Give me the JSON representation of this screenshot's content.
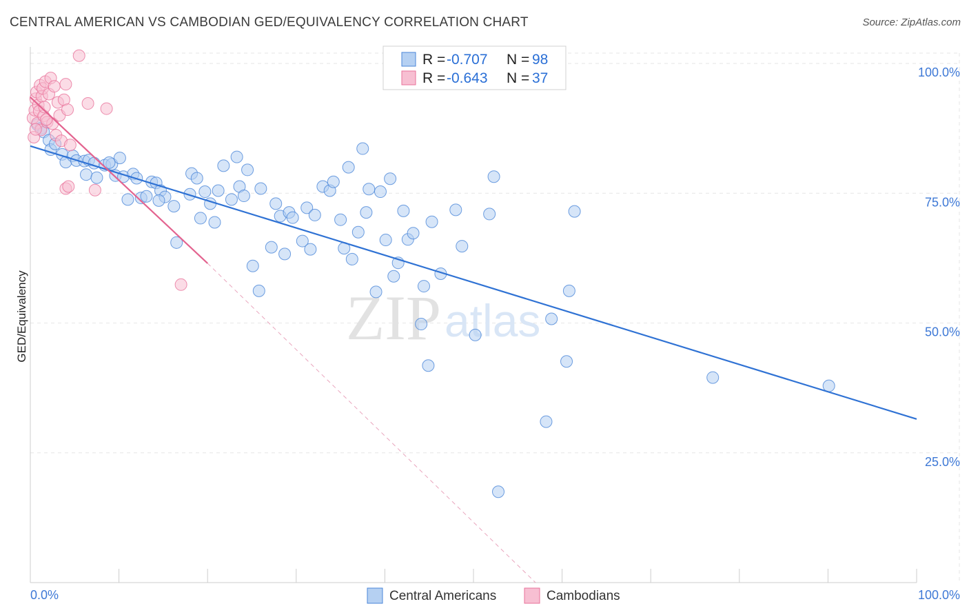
{
  "chart_data": {
    "type": "scatter",
    "title": "CENTRAL AMERICAN VS CAMBODIAN GED/EQUIVALENCY CORRELATION CHART",
    "source": "Source: ZipAtlas.com",
    "xlabel": "",
    "ylabel": "GED/Equivalency",
    "xlim": [
      0,
      100
    ],
    "ylim": [
      0,
      102
    ],
    "x_tick_labels": [
      "0.0%",
      "100.0%"
    ],
    "y_ticks": [
      25,
      50,
      75,
      100
    ],
    "y_tick_labels": [
      "25.0%",
      "50.0%",
      "75.0%",
      "100.0%"
    ],
    "grid": true,
    "legend_position": "top-center",
    "watermark": "ZIPatlas",
    "colors": {
      "central_americans": "#4a86d8",
      "central_americans_fill": "#b5d0f2",
      "central_americans_line": "#2f72d4",
      "cambodians": "#e9729a",
      "cambodians_fill": "#f7bfd2",
      "cambodians_line": "#e3638f"
    },
    "stats": [
      {
        "r_label": "R = ",
        "r_value": "-0.707",
        "n_label": "N = ",
        "n_value": "98"
      },
      {
        "r_label": "R = ",
        "r_value": "-0.643",
        "n_label": "N = ",
        "n_value": "37"
      }
    ],
    "series": [
      {
        "name": "Central Americans",
        "trend": {
          "x": [
            0,
            100
          ],
          "y": [
            84.1,
            31.5
          ]
        },
        "points": [
          [
            0.8,
            88.2
          ],
          [
            1.2,
            87.5
          ],
          [
            1.5,
            86.8
          ],
          [
            2.1,
            85.2
          ],
          [
            2.3,
            83.4
          ],
          [
            2.8,
            84.5
          ],
          [
            3.6,
            82.5
          ],
          [
            4.0,
            81.0
          ],
          [
            4.8,
            82.2
          ],
          [
            5.2,
            81.3
          ],
          [
            6.1,
            81.2
          ],
          [
            6.3,
            78.6
          ],
          [
            6.6,
            81.4
          ],
          [
            7.2,
            80.8
          ],
          [
            7.5,
            78.0
          ],
          [
            8.4,
            80.4
          ],
          [
            9.2,
            80.6
          ],
          [
            8.9,
            80.9
          ],
          [
            10.1,
            81.8
          ],
          [
            9.6,
            78.4
          ],
          [
            10.5,
            78.2
          ],
          [
            11.0,
            73.8
          ],
          [
            11.6,
            78.7
          ],
          [
            12.0,
            77.9
          ],
          [
            12.5,
            74.1
          ],
          [
            13.1,
            74.4
          ],
          [
            13.7,
            77.2
          ],
          [
            14.2,
            77.0
          ],
          [
            14.7,
            75.5
          ],
          [
            15.2,
            74.3
          ],
          [
            14.5,
            73.6
          ],
          [
            16.2,
            72.5
          ],
          [
            16.5,
            65.5
          ],
          [
            18.0,
            74.8
          ],
          [
            18.2,
            78.8
          ],
          [
            18.8,
            77.9
          ],
          [
            19.2,
            70.2
          ],
          [
            19.7,
            75.3
          ],
          [
            20.3,
            73.0
          ],
          [
            20.8,
            69.4
          ],
          [
            21.2,
            75.5
          ],
          [
            21.8,
            80.3
          ],
          [
            22.7,
            73.8
          ],
          [
            23.3,
            82.0
          ],
          [
            23.6,
            76.3
          ],
          [
            24.1,
            74.5
          ],
          [
            24.5,
            79.5
          ],
          [
            25.1,
            61.0
          ],
          [
            25.8,
            56.2
          ],
          [
            26.0,
            75.9
          ],
          [
            27.2,
            64.6
          ],
          [
            27.7,
            73.0
          ],
          [
            28.2,
            70.6
          ],
          [
            28.7,
            63.3
          ],
          [
            29.2,
            71.3
          ],
          [
            29.6,
            70.3
          ],
          [
            30.7,
            65.8
          ],
          [
            31.2,
            72.2
          ],
          [
            31.6,
            64.2
          ],
          [
            32.1,
            70.8
          ],
          [
            33.0,
            76.3
          ],
          [
            33.8,
            75.5
          ],
          [
            34.2,
            77.2
          ],
          [
            35.0,
            69.9
          ],
          [
            35.4,
            64.4
          ],
          [
            35.9,
            80.0
          ],
          [
            36.3,
            62.3
          ],
          [
            37.0,
            67.5
          ],
          [
            37.5,
            83.6
          ],
          [
            37.9,
            71.3
          ],
          [
            38.2,
            75.8
          ],
          [
            39.0,
            56.0
          ],
          [
            39.5,
            75.3
          ],
          [
            40.1,
            66.0
          ],
          [
            40.6,
            77.8
          ],
          [
            41.0,
            59.0
          ],
          [
            41.5,
            61.6
          ],
          [
            42.1,
            71.6
          ],
          [
            42.6,
            66.1
          ],
          [
            43.2,
            67.3
          ],
          [
            44.1,
            49.8
          ],
          [
            44.4,
            57.1
          ],
          [
            44.9,
            41.8
          ],
          [
            45.3,
            69.5
          ],
          [
            46.3,
            59.5
          ],
          [
            48.0,
            71.8
          ],
          [
            48.7,
            64.8
          ],
          [
            50.2,
            47.7
          ],
          [
            51.8,
            71.0
          ],
          [
            52.3,
            78.2
          ],
          [
            52.8,
            17.5
          ],
          [
            58.2,
            31.0
          ],
          [
            58.8,
            50.8
          ],
          [
            60.5,
            42.6
          ],
          [
            60.8,
            56.2
          ],
          [
            61.4,
            71.5
          ],
          [
            77.0,
            39.5
          ],
          [
            90.1,
            37.9
          ]
        ]
      },
      {
        "name": "Cambodians",
        "trend": {
          "x": [
            0,
            20
          ],
          "y": [
            93.5,
            61.5
          ]
        },
        "trend_dashed": {
          "x": [
            20,
            57
          ],
          "y": [
            61.5,
            0
          ]
        },
        "points": [
          [
            0.3,
            89.5
          ],
          [
            0.5,
            91.0
          ],
          [
            0.6,
            93.2
          ],
          [
            0.7,
            94.5
          ],
          [
            0.8,
            88.5
          ],
          [
            0.9,
            92.0
          ],
          [
            1.0,
            90.8
          ],
          [
            1.1,
            95.8
          ],
          [
            1.2,
            87.2
          ],
          [
            1.3,
            93.7
          ],
          [
            1.4,
            95.2
          ],
          [
            1.5,
            89.9
          ],
          [
            1.6,
            91.6
          ],
          [
            1.7,
            96.5
          ],
          [
            1.9,
            88.7
          ],
          [
            2.1,
            94.1
          ],
          [
            2.3,
            97.2
          ],
          [
            2.5,
            88.4
          ],
          [
            2.7,
            95.6
          ],
          [
            2.9,
            86.2
          ],
          [
            3.1,
            92.5
          ],
          [
            3.3,
            90.0
          ],
          [
            3.5,
            85.1
          ],
          [
            3.8,
            93.0
          ],
          [
            4.0,
            96.0
          ],
          [
            4.2,
            91.1
          ],
          [
            4.5,
            84.3
          ],
          [
            4.0,
            75.9
          ],
          [
            4.3,
            76.3
          ],
          [
            5.5,
            101.5
          ],
          [
            6.5,
            92.3
          ],
          [
            7.3,
            75.6
          ],
          [
            8.6,
            91.3
          ],
          [
            17.0,
            57.4
          ],
          [
            0.4,
            85.8
          ],
          [
            0.6,
            87.3
          ],
          [
            1.8,
            89.2
          ]
        ]
      }
    ],
    "legend": [
      {
        "label": "Central Americans"
      },
      {
        "label": "Cambodians"
      }
    ]
  }
}
